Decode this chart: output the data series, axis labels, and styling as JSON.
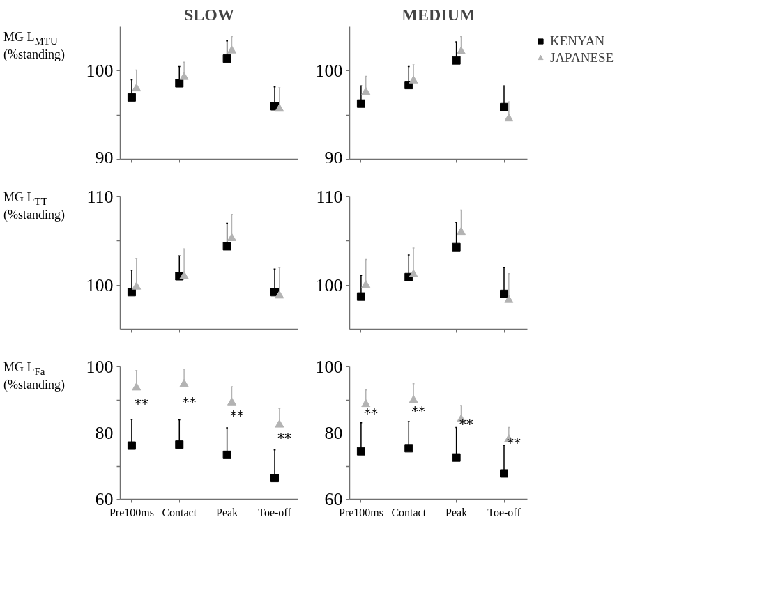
{
  "chart_data": [
    {
      "type": "scatter",
      "title": "SLOW",
      "ylabel": "MG L$_{MTU}$\n(%standing)",
      "categories": [
        null,
        null,
        null,
        null
      ],
      "tick_labels": "y",
      "ylim": [
        90,
        105
      ],
      "yticks": [
        90,
        {
          "value": 95,
          "label": null
        },
        100
      ],
      "series": [
        {
          "color": "#000000",
          "marker": "square",
          "values": [
            97.0,
            98.6,
            101.4,
            96.0
          ],
          "errors": [
            [
              97.0,
              99.0
            ],
            [
              98.6,
              100.5
            ],
            [
              101.4,
              103.4
            ],
            [
              96.0,
              98.2
            ]
          ]
        },
        {
          "color": "#b3b3b3",
          "marker": "triangle",
          "values": [
            98.0,
            99.3,
            102.3,
            95.7
          ],
          "errors": [
            [
              98.0,
              100.1
            ],
            [
              99.3,
              101.0
            ],
            [
              102.3,
              103.9
            ],
            [
              95.7,
              98.1
            ]
          ]
        }
      ]
    },
    {
      "type": "scatter",
      "title": "MEDIUM",
      "categories": [
        null,
        null,
        null,
        null
      ],
      "tick_labels": "y",
      "ylim": [
        90,
        105
      ],
      "yticks": [
        90,
        {
          "value": 95,
          "label": null
        },
        100
      ],
      "legend": "top right",
      "series": [
        {
          "name": "KENYAN",
          "color": "#000000",
          "marker": "square",
          "values": [
            96.3,
            98.4,
            101.2,
            95.9
          ],
          "errors": [
            [
              96.3,
              98.3
            ],
            [
              98.4,
              100.5
            ],
            [
              101.2,
              103.3
            ],
            [
              95.9,
              98.3
            ]
          ]
        },
        {
          "name": "JAPANESE",
          "color": "#b3b3b3",
          "marker": "triangle",
          "values": [
            97.6,
            98.9,
            102.2,
            94.6
          ],
          "errors": [
            [
              97.6,
              99.4
            ],
            [
              98.9,
              100.7
            ],
            [
              102.2,
              103.9
            ],
            [
              94.6,
              96.5
            ]
          ]
        }
      ]
    },
    {
      "type": "scatter",
      "ylabel": "MG L$_{TT}$\n(%standing)",
      "categories": [
        null,
        null,
        null,
        null
      ],
      "tick_labels": "y",
      "ylim": [
        95,
        110
      ],
      "yticks": [
        100,
        {
          "value": 105,
          "label": null
        },
        110
      ],
      "series": [
        {
          "color": "#000000",
          "marker": "square",
          "values": [
            99.2,
            101.0,
            104.4,
            99.2
          ],
          "errors": [
            [
              99.2,
              101.7
            ],
            [
              101.0,
              103.3
            ],
            [
              104.4,
              107.0
            ],
            [
              99.2,
              101.8
            ]
          ]
        },
        {
          "color": "#b3b3b3",
          "marker": "triangle",
          "values": [
            99.8,
            101.0,
            105.3,
            98.8
          ],
          "errors": [
            [
              99.8,
              103.0
            ],
            [
              101.0,
              104.1
            ],
            [
              105.3,
              108.0
            ],
            [
              98.8,
              102.0
            ]
          ]
        }
      ]
    },
    {
      "type": "scatter",
      "categories": [
        null,
        null,
        null,
        null
      ],
      "tick_labels": "y",
      "ylim": [
        95,
        110
      ],
      "yticks": [
        100,
        {
          "value": 105,
          "label": null
        },
        110
      ],
      "series": [
        {
          "color": "#000000",
          "marker": "square",
          "values": [
            98.7,
            100.9,
            104.3,
            99.0
          ],
          "errors": [
            [
              98.7,
              101.1
            ],
            [
              100.9,
              103.4
            ],
            [
              104.3,
              107.1
            ],
            [
              99.0,
              102.0
            ]
          ]
        },
        {
          "color": "#b3b3b3",
          "marker": "triangle",
          "values": [
            100.0,
            101.2,
            106.0,
            98.3
          ],
          "errors": [
            [
              100.0,
              102.9
            ],
            [
              101.2,
              104.2
            ],
            [
              106.0,
              108.5
            ],
            [
              98.3,
              101.3
            ]
          ]
        }
      ]
    },
    {
      "type": "scatter",
      "ylabel": "MG L$_{Fa}$\n(%standing)",
      "categories": [
        "Pre100ms",
        "Contact",
        "Peak",
        "Toe-off"
      ],
      "ylim": [
        60,
        100
      ],
      "yticks": [
        60,
        {
          "value": 70,
          "label": null
        },
        80,
        {
          "value": 90,
          "label": null
        },
        100
      ],
      "annotations": [
        "**",
        "**",
        "**",
        "**"
      ],
      "series": [
        {
          "color": "#000000",
          "marker": "square",
          "values": [
            76.2,
            76.5,
            73.4,
            66.4
          ],
          "errors": [
            [
              76.2,
              84.1
            ],
            [
              76.5,
              84.0
            ],
            [
              73.4,
              81.6
            ],
            [
              66.4,
              74.9
            ]
          ]
        },
        {
          "color": "#b3b3b3",
          "marker": "triangle",
          "values": [
            93.7,
            94.8,
            89.2,
            82.5
          ],
          "errors": [
            [
              93.7,
              98.9
            ],
            [
              94.8,
              99.3
            ],
            [
              89.2,
              94.0
            ],
            [
              82.5,
              87.4
            ]
          ]
        }
      ]
    },
    {
      "type": "scatter",
      "categories": [
        "Pre100ms",
        "Contact",
        "Peak",
        "Toe-off"
      ],
      "ylim": [
        60,
        100
      ],
      "yticks": [
        60,
        {
          "value": 70,
          "label": null
        },
        80,
        {
          "value": 90,
          "label": null
        },
        100
      ],
      "annotations": [
        "**",
        "**",
        "**",
        "**"
      ],
      "series": [
        {
          "color": "#000000",
          "marker": "square",
          "values": [
            74.5,
            75.4,
            72.6,
            67.8
          ],
          "errors": [
            [
              74.5,
              83.1
            ],
            [
              75.4,
              83.5
            ],
            [
              72.6,
              81.7
            ],
            [
              67.8,
              76.3
            ]
          ]
        },
        {
          "color": "#b3b3b3",
          "marker": "triangle",
          "values": [
            88.7,
            89.9,
            84.1,
            78.1
          ],
          "errors": [
            [
              88.7,
              93.0
            ],
            [
              89.9,
              94.9
            ],
            [
              84.1,
              88.3
            ],
            [
              78.1,
              81.7
            ]
          ]
        }
      ]
    }
  ]
}
